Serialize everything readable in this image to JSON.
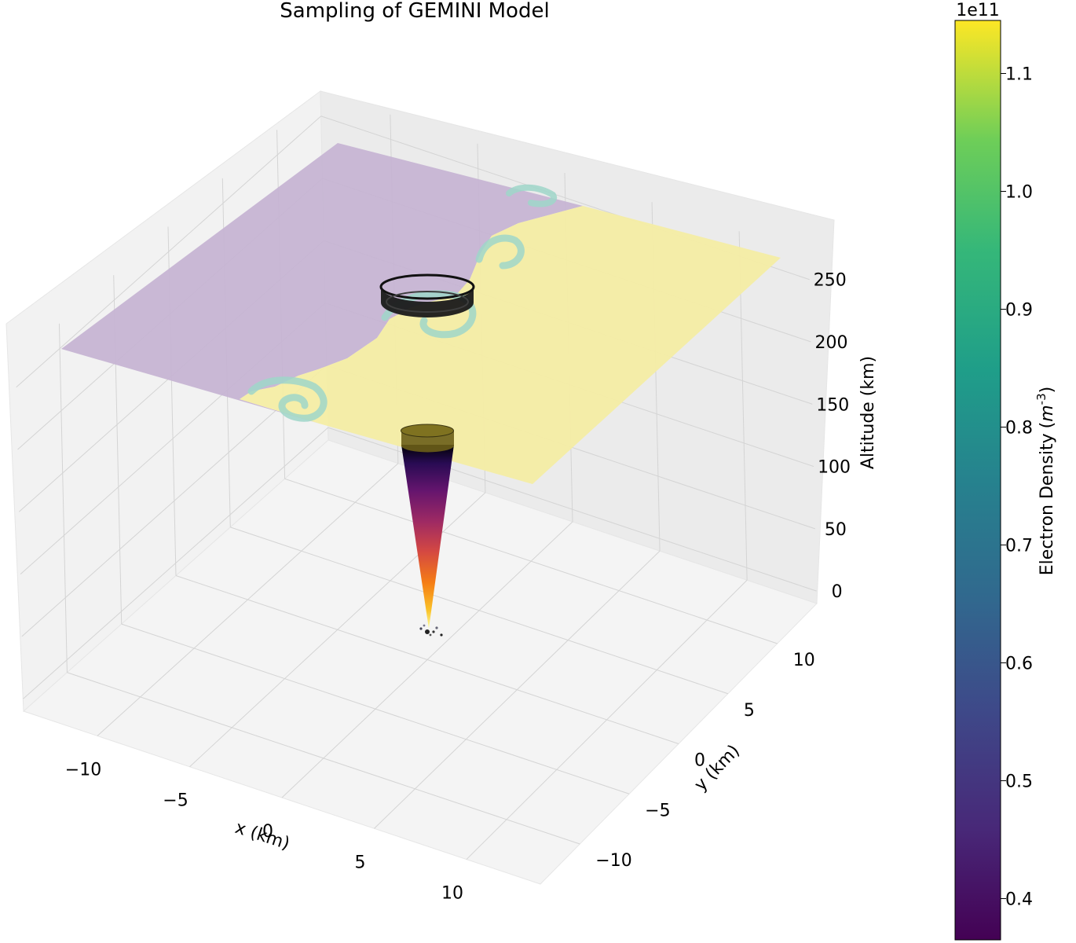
{
  "chart_data": {
    "type": "surface3d",
    "title": "Sampling of GEMINI Model",
    "xlabel": "x (km)",
    "ylabel": "y (km)",
    "zlabel": "Altitude (km)",
    "x_ticks": [
      -10,
      -5,
      0,
      5,
      10
    ],
    "y_ticks": [
      -10,
      -5,
      0,
      5,
      10
    ],
    "z_ticks": [
      0,
      50,
      100,
      150,
      200,
      250
    ],
    "xlim": [
      -14,
      14
    ],
    "ylim": [
      -14,
      14
    ],
    "zlim": [
      -10,
      270
    ],
    "colorbar": {
      "label": "Electron Density",
      "unit": "m",
      "unit_exponent": "-3",
      "offset_text": "1e11",
      "ticks": [
        0.4,
        0.5,
        0.6,
        0.7,
        0.8,
        0.9,
        1.0,
        1.1
      ],
      "tick_labels": [
        "0.4",
        "0.5",
        "0.6",
        "0.7",
        "0.8",
        "0.9",
        "1.0",
        "1.1"
      ],
      "range": [
        0.365,
        1.145
      ],
      "colormap": "viridis"
    },
    "slice": {
      "description": "Horizontal electron density slice at altitude",
      "altitude": 250,
      "low_color": "#c8b4d2",
      "high_color": "#f5eda4"
    },
    "cone": {
      "apex_altitude": 0,
      "top_altitude": 150,
      "colormap": "inferno"
    },
    "ring": {
      "altitude": 250
    }
  }
}
